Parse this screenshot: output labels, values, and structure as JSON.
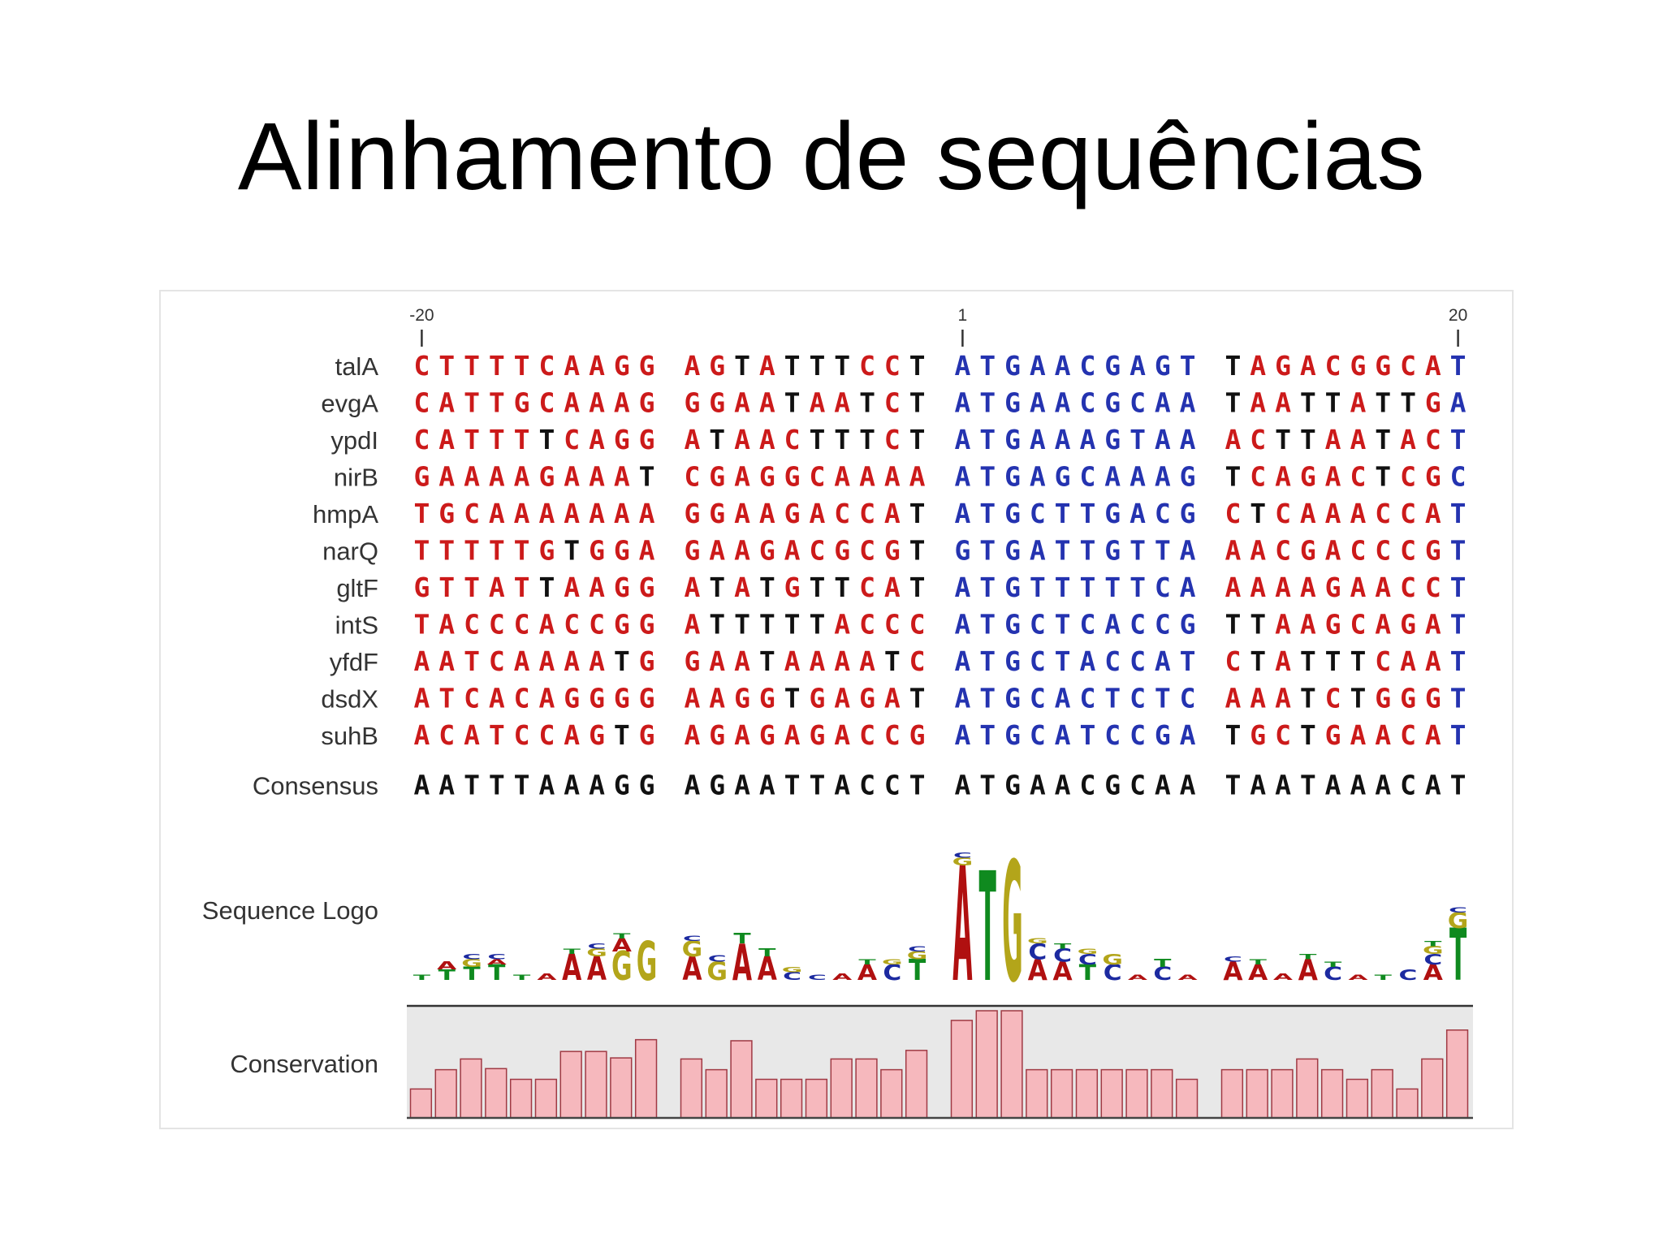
{
  "slide": {
    "title": "Alinhamento de sequências"
  },
  "chart_data": {
    "type": "alignment",
    "ruler": [
      {
        "label": "-20",
        "column": 0
      },
      {
        "label": "1",
        "column": 20
      },
      {
        "label": "20",
        "column": 39
      }
    ],
    "sequences": [
      {
        "name": "talA",
        "seq": "CTTTTCAAGGAGTATTTCCTATGAACGAGTTAGACGGCAT"
      },
      {
        "name": "evgA",
        "seq": "CATTGCAAAGGGAATAATCTATGAACGCAATAATTATTGA"
      },
      {
        "name": "ypdI",
        "seq": "CATTTTCAGGATAACTTTCTATGAAAGTAAACTTAATACT"
      },
      {
        "name": "nirB",
        "seq": "GAAAAGAAATCGAGGCAAAAATGAGCAAAGTCAGACTCGC"
      },
      {
        "name": "hmpA",
        "seq": "TGCAAAAAAAGGAAGACCATATGCTTGACGCTCAAACCAT"
      },
      {
        "name": "narQ",
        "seq": "TTTTTGTGGAGAAGACGCGTGTGATTGTTAAACGACCCGT"
      },
      {
        "name": "gltF",
        "seq": "GTTATTAAGGATATGTTCATATGTTTTTCAAAAAGAACCT"
      },
      {
        "name": "intS",
        "seq": "TACCCACCGGATTTTTACCCATGCTCACCGTTAAGCAGAT"
      },
      {
        "name": "yfdF",
        "seq": "AATCAAAATGGAATAAAATCATGCTACCATCTATTTCAAT"
      },
      {
        "name": "dsdX",
        "seq": "ATCACAGGGGAAGGTGAGATATGCACTCTCAAATCTGGGT"
      },
      {
        "name": "suhB",
        "seq": "ACATCCAGTGAGAGAGACCGATGCATCCGATGCTGAACAT"
      }
    ],
    "consensus": {
      "label": "Consensus",
      "seq": "AATTTAAAGGAGAATTACCTATGAACGCAATAATAAACAT"
    },
    "logo": {
      "label": "Sequence Logo",
      "columns": [
        [
          [
            "T",
            0.1
          ]
        ],
        [
          [
            "A",
            0.15
          ],
          [
            "T",
            0.2
          ]
        ],
        [
          [
            "T",
            0.25
          ],
          [
            "G",
            0.15
          ],
          [
            "C",
            0.1
          ]
        ],
        [
          [
            "T",
            0.3
          ],
          [
            "C",
            0.1
          ],
          [
            "A",
            0.1
          ]
        ],
        [
          [
            "T",
            0.1
          ]
        ],
        [
          [
            "A",
            0.12
          ]
        ],
        [
          [
            "A",
            0.5
          ],
          [
            "T",
            0.1
          ]
        ],
        [
          [
            "A",
            0.45
          ],
          [
            "C",
            0.1
          ],
          [
            "G",
            0.15
          ]
        ],
        [
          [
            "G",
            0.55
          ],
          [
            "A",
            0.25
          ],
          [
            "T",
            0.1
          ]
        ],
        [
          [
            "G",
            0.75
          ]
        ],
        [
          [
            "A",
            0.45
          ],
          [
            "G",
            0.3
          ],
          [
            "C",
            0.1
          ]
        ],
        [
          [
            "G",
            0.35
          ],
          [
            "C",
            0.12
          ]
        ],
        [
          [
            "A",
            0.7
          ],
          [
            "T",
            0.2
          ]
        ],
        [
          [
            "A",
            0.45
          ],
          [
            "T",
            0.15
          ]
        ],
        [
          [
            "C",
            0.15
          ],
          [
            "G",
            0.1
          ]
        ],
        [
          [
            "C",
            0.1
          ]
        ],
        [
          [
            "A",
            0.12
          ]
        ],
        [
          [
            "A",
            0.3
          ],
          [
            "T",
            0.1
          ]
        ],
        [
          [
            "C",
            0.3
          ],
          [
            "G",
            0.1
          ]
        ],
        [
          [
            "T",
            0.4
          ],
          [
            "G",
            0.15
          ],
          [
            "C",
            0.1
          ]
        ],
        [
          [
            "A",
            2.2
          ],
          [
            "G",
            0.15
          ],
          [
            "C",
            0.1
          ]
        ],
        [
          [
            "T",
            2.1
          ]
        ],
        [
          [
            "G",
            2.3
          ]
        ],
        [
          [
            "C",
            0.3
          ],
          [
            "A",
            0.4
          ],
          [
            "G",
            0.1
          ]
        ],
        [
          [
            "C",
            0.25
          ],
          [
            "A",
            0.35
          ],
          [
            "T",
            0.1
          ]
        ],
        [
          [
            "T",
            0.3
          ],
          [
            "C",
            0.2
          ],
          [
            "G",
            0.1
          ]
        ],
        [
          [
            "C",
            0.3
          ],
          [
            "G",
            0.2
          ]
        ],
        [
          [
            "A",
            0.1
          ]
        ],
        [
          [
            "C",
            0.25
          ],
          [
            "T",
            0.15
          ]
        ],
        [
          [
            "A",
            0.1
          ]
        ],
        [
          [
            "A",
            0.35
          ],
          [
            "C",
            0.1
          ]
        ],
        [
          [
            "A",
            0.3
          ],
          [
            "T",
            0.1
          ]
        ],
        [
          [
            "A",
            0.12
          ]
        ],
        [
          [
            "A",
            0.4
          ],
          [
            "T",
            0.1
          ]
        ],
        [
          [
            "C",
            0.25
          ],
          [
            "T",
            0.1
          ]
        ],
        [
          [
            "A",
            0.1
          ]
        ],
        [
          [
            "T",
            0.1
          ]
        ],
        [
          [
            "C",
            0.2
          ]
        ],
        [
          [
            "A",
            0.3
          ],
          [
            "C",
            0.2
          ],
          [
            "G",
            0.15
          ],
          [
            "T",
            0.1
          ]
        ],
        [
          [
            "T",
            1.0
          ],
          [
            "G",
            0.3
          ],
          [
            "C",
            0.1
          ]
        ]
      ]
    },
    "conservation": {
      "label": "Conservation",
      "values": [
        0.27,
        0.45,
        0.55,
        0.46,
        0.36,
        0.36,
        0.62,
        0.62,
        0.56,
        0.73,
        0.55,
        0.45,
        0.72,
        0.36,
        0.36,
        0.36,
        0.55,
        0.55,
        0.45,
        0.63,
        0.91,
        1.0,
        1.0,
        0.45,
        0.45,
        0.45,
        0.45,
        0.45,
        0.45,
        0.36,
        0.45,
        0.45,
        0.45,
        0.55,
        0.45,
        0.36,
        0.45,
        0.27,
        0.55,
        0.82
      ]
    },
    "colors": {
      "A": "#b5121b",
      "C": "#1b2fa6",
      "G": "#c9b400",
      "T": "#111111",
      "logoA": "#b01010",
      "logoC": "#1c2aa0",
      "logoG": "#b3a51a",
      "logoT": "#0f8a1f",
      "align_block1": "#cc1a1a",
      "align_block1_alt": "#111111",
      "align_block3": "#2433b0",
      "bar_fill": "#f6b8bd",
      "bar_stroke": "#a03a44",
      "panel_bg": "#e8e8e8"
    }
  }
}
